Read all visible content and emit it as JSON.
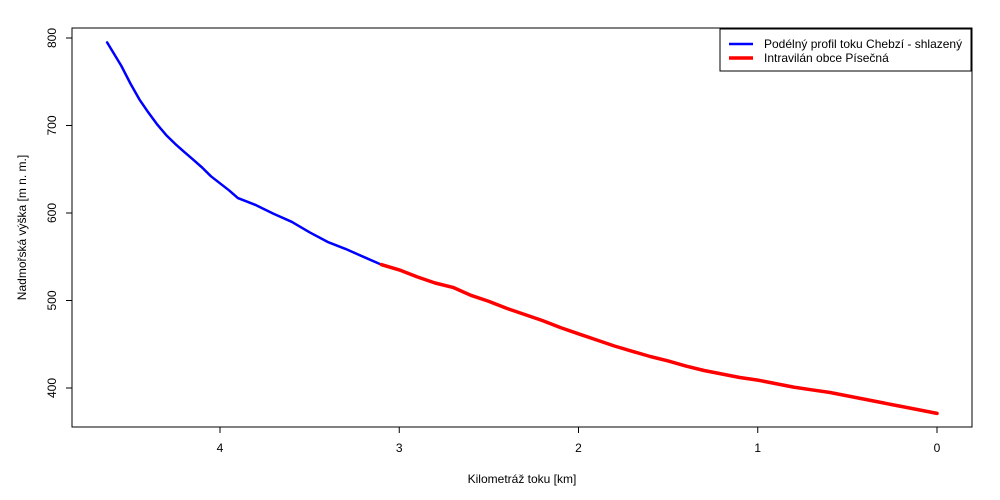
{
  "chart_data": {
    "type": "line",
    "title": "",
    "xlabel": "Kilometráž toku [km]",
    "ylabel": "Nadmořská výška [m n. m.]",
    "xlim": [
      4.7,
      -0.2
    ],
    "ylim": [
      355,
      810
    ],
    "x_reversed": true,
    "x_ticks": [
      4,
      3,
      2,
      1,
      0
    ],
    "y_ticks": [
      400,
      500,
      600,
      700,
      800
    ],
    "legend_position": "top-right",
    "colors": {
      "blue": "#0000ff",
      "red": "#ff0000",
      "axis": "#000000",
      "background": "#ffffff"
    },
    "series": [
      {
        "name": "Podélný profil toku Chebzí - shlazený",
        "color": "#0000ff",
        "x": [
          4.63,
          4.55,
          4.5,
          4.45,
          4.4,
          4.35,
          4.3,
          4.25,
          4.2,
          4.15,
          4.1,
          4.05,
          4.0,
          3.95,
          3.9,
          3.85,
          3.8,
          3.75,
          3.7,
          3.6,
          3.5,
          3.4,
          3.3,
          3.2,
          3.1
        ],
        "y": [
          795,
          768,
          748,
          730,
          715,
          701,
          689,
          679,
          670,
          661,
          652,
          642,
          634,
          626,
          617,
          613,
          609,
          604,
          599,
          590,
          578,
          567,
          559,
          550,
          541
        ]
      },
      {
        "name": "Intravilán obce Písečná",
        "color": "#ff0000",
        "x": [
          3.1,
          3.0,
          2.9,
          2.8,
          2.7,
          2.6,
          2.5,
          2.4,
          2.3,
          2.2,
          2.1,
          2.0,
          1.9,
          1.8,
          1.7,
          1.6,
          1.5,
          1.4,
          1.3,
          1.2,
          1.1,
          1.0,
          0.9,
          0.8,
          0.7,
          0.6,
          0.5,
          0.4,
          0.3,
          0.2,
          0.1,
          0.0
        ],
        "y": [
          541,
          535,
          527,
          520,
          515,
          506,
          499,
          491,
          484,
          477,
          469,
          462,
          455,
          448,
          442,
          436,
          431,
          425,
          420,
          416,
          412,
          409,
          405,
          401,
          398,
          395,
          391,
          387,
          383,
          379,
          375,
          371
        ]
      }
    ]
  }
}
